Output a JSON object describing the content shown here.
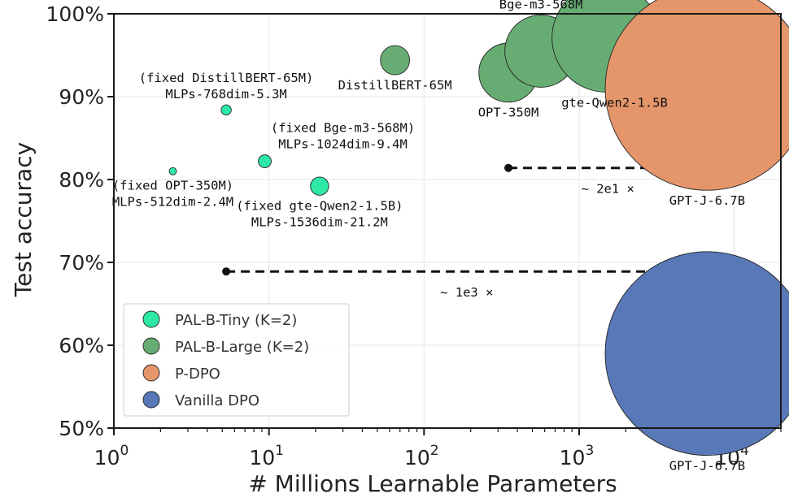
{
  "chart_data": {
    "type": "scatter",
    "xlabel": "# Millions Learnable Parameters",
    "ylabel": "Test accuracy",
    "xscale": "log",
    "xlim": [
      1,
      20000
    ],
    "ylim": [
      50,
      100
    ],
    "x_ticks": [
      {
        "value": 1,
        "base": "10",
        "exp": "0"
      },
      {
        "value": 10,
        "base": "10",
        "exp": "1"
      },
      {
        "value": 100,
        "base": "10",
        "exp": "2"
      },
      {
        "value": 1000,
        "base": "10",
        "exp": "3"
      },
      {
        "value": 10000,
        "base": "10",
        "exp": "4"
      }
    ],
    "y_ticks": [
      {
        "value": 50,
        "label": "50%"
      },
      {
        "value": 60,
        "label": "60%"
      },
      {
        "value": 70,
        "label": "70%"
      },
      {
        "value": 80,
        "label": "80%"
      },
      {
        "value": 90,
        "label": "90%"
      },
      {
        "value": 100,
        "label": "100%"
      }
    ],
    "grid": true,
    "legend_position": "bottom-left",
    "series": [
      {
        "name": "PAL-B-Tiny (K=2)",
        "color": "#2ee8a6",
        "points": [
          {
            "x": 2.4,
            "y": 81.0,
            "size": 2.4,
            "label": [
              "(fixed OPT-350M)",
              "MLPs-512dim-2.4M"
            ],
            "label_pos": "below"
          },
          {
            "x": 5.3,
            "y": 88.4,
            "size": 5.3,
            "label": [
              "(fixed DistillBERT-65M)",
              "MLPs-768dim-5.3M"
            ],
            "label_pos": "above"
          },
          {
            "x": 9.4,
            "y": 82.2,
            "size": 9.4,
            "label": [
              "(fixed Bge-m3-568M)",
              "MLPs-1024dim-9.4M"
            ],
            "label_pos": "above-right"
          },
          {
            "x": 21.2,
            "y": 79.2,
            "size": 21.2,
            "label": [
              "(fixed gte-Qwen2-1.5B)",
              "MLPs-1536dim-21.2M"
            ],
            "label_pos": "below"
          }
        ]
      },
      {
        "name": "PAL-B-Large (K=2)",
        "color": "#67ad73",
        "points": [
          {
            "x": 65,
            "y": 94.4,
            "size": 65,
            "label": [
              "DistillBERT-65M"
            ],
            "label_pos": "below"
          },
          {
            "x": 350,
            "y": 92.9,
            "size": 350,
            "label": [
              "OPT-350M"
            ],
            "label_pos": "below"
          },
          {
            "x": 568,
            "y": 95.5,
            "size": 568,
            "label": [
              "Bge-m3-568M"
            ],
            "label_pos": "above"
          },
          {
            "x": 1500,
            "y": 97.1,
            "size": 1500,
            "label": [
              "gte-Qwen2-1.5B"
            ],
            "label_pos": "below-left"
          }
        ]
      },
      {
        "name": "P-DPO",
        "color": "#e4966a",
        "points": [
          {
            "x": 6700,
            "y": 91.0,
            "size": 6700,
            "label": [
              "GPT-J-6.7B"
            ],
            "label_pos": "below"
          }
        ]
      },
      {
        "name": "Vanilla DPO",
        "color": "#5878b8",
        "points": [
          {
            "x": 6700,
            "y": 59.0,
            "size": 6700,
            "label": [
              "GPT-J-6.7B"
            ],
            "label_pos": "below"
          }
        ]
      }
    ],
    "annotations": [
      {
        "from": [
          350,
          81.4
        ],
        "to": [
          6700,
          81.4
        ],
        "style": "dashed-arrow",
        "text": "~ 2e1 ×"
      },
      {
        "from": [
          5.3,
          68.9
        ],
        "to": [
          6700,
          68.9
        ],
        "style": "dashed-arrow",
        "text": "~ 1e3 ×"
      }
    ]
  }
}
